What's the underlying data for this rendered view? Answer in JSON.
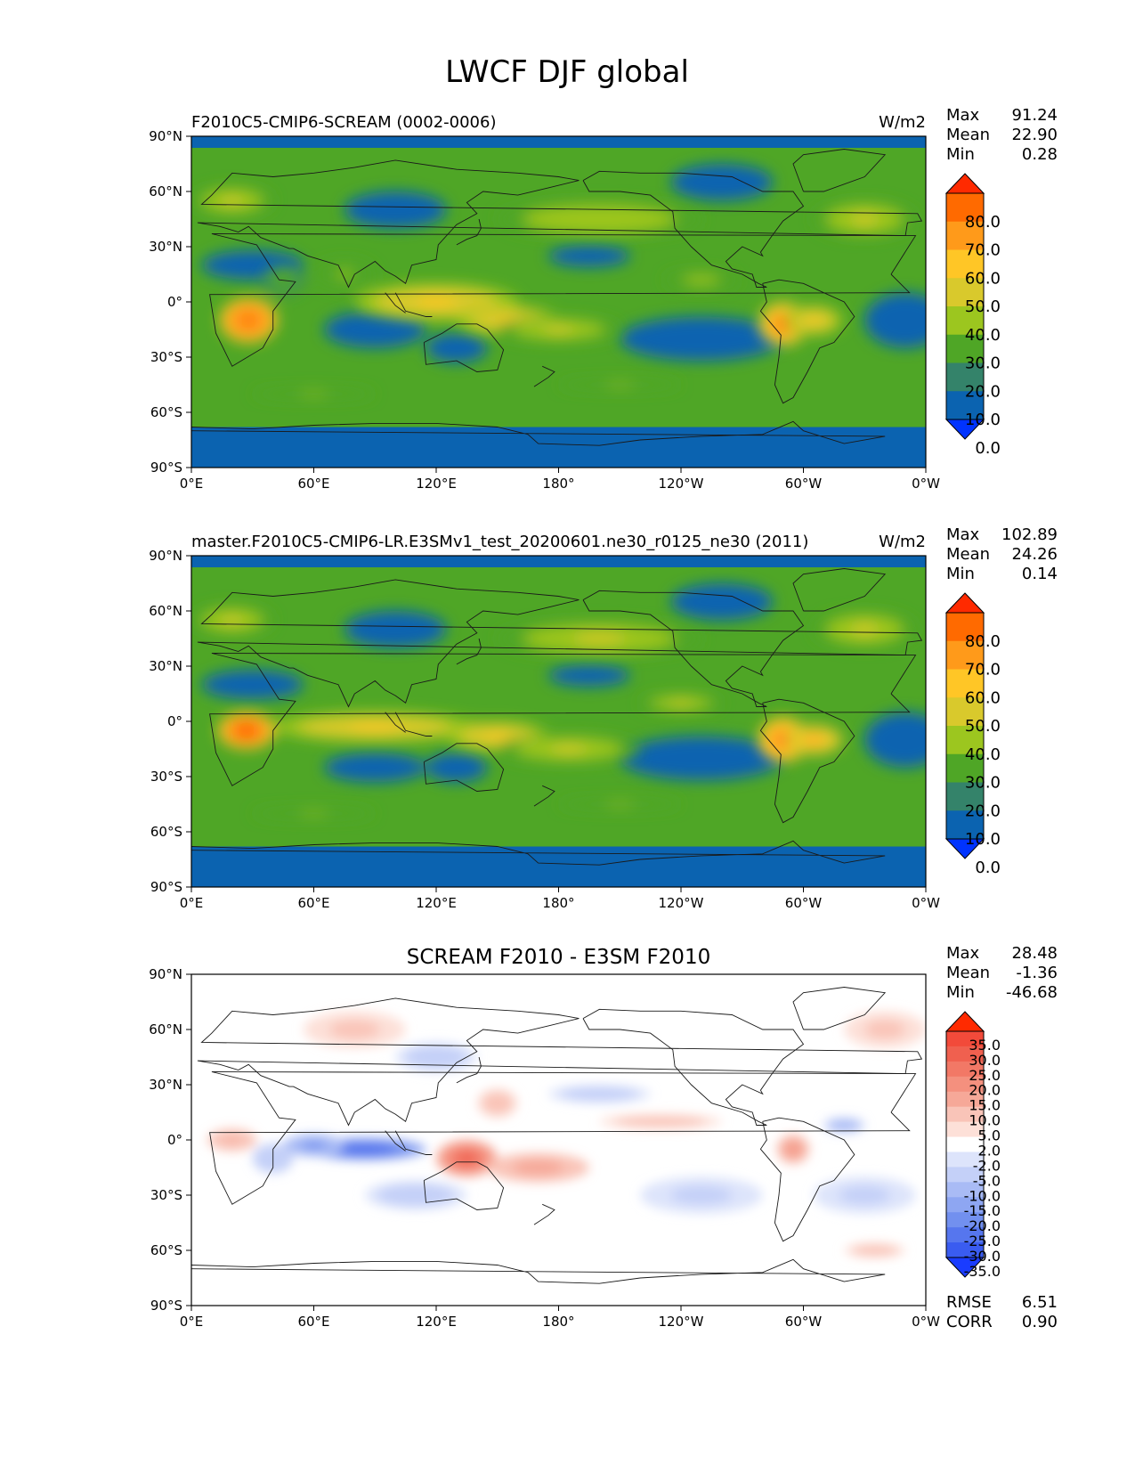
{
  "title": "LWCF DJF global",
  "chart_data": [
    {
      "type": "heatmap",
      "panel": "test",
      "title_left": "F2010C5-CMIP6-SCREAM (0002-0006)",
      "title_center": "",
      "units": "W/m2",
      "stats": [
        {
          "label": "Max",
          "value": "91.24"
        },
        {
          "label": "Mean",
          "value": "22.90"
        },
        {
          "label": "Min",
          "value": "0.28"
        }
      ],
      "extra_stats": [],
      "xticks": [
        "0°E",
        "60°E",
        "120°E",
        "180°",
        "120°W",
        "60°W",
        "0°W"
      ],
      "yticks": [
        "90°N",
        "60°N",
        "30°N",
        "0°",
        "30°S",
        "60°S",
        "90°S"
      ],
      "xlim": [
        0,
        360
      ],
      "ylim": [
        -90,
        90
      ],
      "colorbar": {
        "levels": [
          "80.0",
          "70.0",
          "60.0",
          "50.0",
          "40.0",
          "30.0",
          "20.0",
          "10.0",
          "0.0"
        ],
        "colors": [
          "#ff2a00",
          "#ff6a00",
          "#ff9a1a",
          "#ffc626",
          "#d9c92c",
          "#9cc61f",
          "#4fa626",
          "#34836a",
          "#0b63b0",
          "#0033ff"
        ]
      },
      "blobs": [
        {
          "lon": 28,
          "lat": -10,
          "rx": 14,
          "ry": 12,
          "v": 75
        },
        {
          "lon": 138,
          "lat": -5,
          "rx": 14,
          "ry": 6,
          "v": 78
        },
        {
          "lon": 120,
          "lat": 0,
          "rx": 40,
          "ry": 10,
          "v": 52
        },
        {
          "lon": 155,
          "lat": -10,
          "rx": 25,
          "ry": 8,
          "v": 50
        },
        {
          "lon": 180,
          "lat": -15,
          "rx": 30,
          "ry": 7,
          "v": 40
        },
        {
          "lon": 290,
          "lat": -12,
          "rx": 12,
          "ry": 12,
          "v": 70
        },
        {
          "lon": 305,
          "lat": -10,
          "rx": 14,
          "ry": 8,
          "v": 55
        },
        {
          "lon": 200,
          "lat": 45,
          "rx": 50,
          "ry": 10,
          "v": 38
        },
        {
          "lon": 330,
          "lat": 45,
          "rx": 25,
          "ry": 10,
          "v": 40
        },
        {
          "lon": 20,
          "lat": 55,
          "rx": 20,
          "ry": 8,
          "v": 42
        },
        {
          "lon": 75,
          "lat": 15,
          "rx": 15,
          "ry": 8,
          "v": 30
        },
        {
          "lon": 250,
          "lat": 12,
          "rx": 18,
          "ry": 5,
          "v": 35
        },
        {
          "lon": 210,
          "lat": -45,
          "rx": 30,
          "ry": 3,
          "v": 30
        },
        {
          "lon": 60,
          "lat": -50,
          "rx": 30,
          "ry": 3,
          "v": 30
        },
        {
          "lon": 45,
          "lat": 12,
          "rx": 10,
          "ry": 8,
          "v": 25
        }
      ],
      "lows": [
        {
          "lon": 90,
          "lat": -15,
          "rx": 25,
          "ry": 10
        },
        {
          "lon": 250,
          "lat": -20,
          "rx": 40,
          "ry": 12
        },
        {
          "lon": 350,
          "lat": -10,
          "rx": 20,
          "ry": 15
        },
        {
          "lon": 195,
          "lat": 25,
          "rx": 20,
          "ry": 6
        },
        {
          "lon": 30,
          "lat": 20,
          "rx": 25,
          "ry": 8
        },
        {
          "lon": 100,
          "lat": 50,
          "rx": 25,
          "ry": 10
        },
        {
          "lon": 260,
          "lat": 65,
          "rx": 25,
          "ry": 10
        },
        {
          "lon": 130,
          "lat": -25,
          "rx": 15,
          "ry": 8
        }
      ]
    },
    {
      "type": "heatmap",
      "panel": "reference",
      "title_left": "master.F2010C5-CMIP6-LR.E3SMv1_test_20200601.ne30_r0125_ne30 (2011)",
      "title_center": "",
      "units": "W/m2",
      "stats": [
        {
          "label": "Max",
          "value": "102.89"
        },
        {
          "label": "Mean",
          "value": "24.26"
        },
        {
          "label": "Min",
          "value": "0.14"
        }
      ],
      "extra_stats": [],
      "xticks": [
        "0°E",
        "60°E",
        "120°E",
        "180°",
        "120°W",
        "60°W",
        "0°W"
      ],
      "yticks": [
        "90°N",
        "60°N",
        "30°N",
        "0°",
        "30°S",
        "60°S",
        "90°S"
      ],
      "xlim": [
        0,
        360
      ],
      "ylim": [
        -90,
        90
      ],
      "colorbar": {
        "levels": [
          "80.0",
          "70.0",
          "60.0",
          "50.0",
          "40.0",
          "30.0",
          "20.0",
          "10.0",
          "0.0"
        ],
        "colors": [
          "#ff2a00",
          "#ff6a00",
          "#ff9a1a",
          "#ffc626",
          "#d9c92c",
          "#9cc61f",
          "#4fa626",
          "#34836a",
          "#0b63b0",
          "#0033ff"
        ]
      },
      "blobs": [
        {
          "lon": 27,
          "lat": -5,
          "rx": 14,
          "ry": 10,
          "v": 78
        },
        {
          "lon": 138,
          "lat": -5,
          "rx": 12,
          "ry": 5,
          "v": 82
        },
        {
          "lon": 90,
          "lat": -3,
          "rx": 50,
          "ry": 8,
          "v": 55
        },
        {
          "lon": 150,
          "lat": -8,
          "rx": 25,
          "ry": 8,
          "v": 55
        },
        {
          "lon": 185,
          "lat": -15,
          "rx": 35,
          "ry": 8,
          "v": 42
        },
        {
          "lon": 290,
          "lat": -10,
          "rx": 12,
          "ry": 12,
          "v": 72
        },
        {
          "lon": 305,
          "lat": -10,
          "rx": 14,
          "ry": 8,
          "v": 60
        },
        {
          "lon": 200,
          "lat": 45,
          "rx": 50,
          "ry": 10,
          "v": 42
        },
        {
          "lon": 330,
          "lat": 50,
          "rx": 25,
          "ry": 10,
          "v": 40
        },
        {
          "lon": 20,
          "lat": 55,
          "rx": 20,
          "ry": 8,
          "v": 40
        },
        {
          "lon": 240,
          "lat": 10,
          "rx": 20,
          "ry": 5,
          "v": 42
        },
        {
          "lon": 210,
          "lat": -45,
          "rx": 30,
          "ry": 3,
          "v": 32
        },
        {
          "lon": 60,
          "lat": -50,
          "rx": 30,
          "ry": 3,
          "v": 30
        }
      ],
      "lows": [
        {
          "lon": 90,
          "lat": -25,
          "rx": 25,
          "ry": 8
        },
        {
          "lon": 250,
          "lat": -20,
          "rx": 40,
          "ry": 12
        },
        {
          "lon": 350,
          "lat": -10,
          "rx": 20,
          "ry": 15
        },
        {
          "lon": 195,
          "lat": 25,
          "rx": 20,
          "ry": 6
        },
        {
          "lon": 30,
          "lat": 20,
          "rx": 25,
          "ry": 8
        },
        {
          "lon": 100,
          "lat": 50,
          "rx": 25,
          "ry": 10
        },
        {
          "lon": 260,
          "lat": 65,
          "rx": 25,
          "ry": 10
        },
        {
          "lon": 130,
          "lat": -25,
          "rx": 15,
          "ry": 8
        }
      ]
    },
    {
      "type": "heatmap",
      "panel": "diff",
      "title_left": "",
      "title_center": "SCREAM F2010 - E3SM F2010",
      "units": "",
      "stats": [
        {
          "label": "Max",
          "value": "28.48"
        },
        {
          "label": "Mean",
          "value": "-1.36"
        },
        {
          "label": "Min",
          "value": "-46.68"
        }
      ],
      "extra_stats": [
        {
          "label": "RMSE",
          "value": "6.51"
        },
        {
          "label": "CORR",
          "value": "0.90"
        }
      ],
      "xticks": [
        "0°E",
        "60°E",
        "120°E",
        "180°",
        "120°W",
        "60°W",
        "0°W"
      ],
      "yticks": [
        "90°N",
        "60°N",
        "30°N",
        "0°",
        "30°S",
        "60°S",
        "90°S"
      ],
      "xlim": [
        0,
        360
      ],
      "ylim": [
        -90,
        90
      ],
      "colorbar": {
        "levels": [
          "35.0",
          "30.0",
          "25.0",
          "20.0",
          "15.0",
          "10.0",
          "5.0",
          "2.0",
          "-2.0",
          "-5.0",
          "-10.0",
          "-15.0",
          "-20.0",
          "-25.0",
          "-30.0",
          "-35.0"
        ],
        "colors": [
          "#ff2a00",
          "#f24a3a",
          "#f0604f",
          "#f27866",
          "#f4907e",
          "#f6a898",
          "#f9c4b8",
          "#fde0d8",
          "#ffffff",
          "#dde4fb",
          "#c4d0f8",
          "#a9bbf5",
          "#8ea6f2",
          "#7290ef",
          "#5676ee",
          "#3a5cf0",
          "#1a3cff"
        ]
      },
      "blobs": [
        {
          "lon": 85,
          "lat": -5,
          "rx": 30,
          "ry": 6,
          "v": -30
        },
        {
          "lon": 60,
          "lat": -3,
          "rx": 15,
          "ry": 6,
          "v": -22
        },
        {
          "lon": 135,
          "lat": -10,
          "rx": 15,
          "ry": 10,
          "v": 25
        },
        {
          "lon": 170,
          "lat": -15,
          "rx": 25,
          "ry": 8,
          "v": 12
        },
        {
          "lon": 295,
          "lat": -5,
          "rx": 8,
          "ry": 8,
          "v": 15
        },
        {
          "lon": 320,
          "lat": 8,
          "rx": 10,
          "ry": 4,
          "v": -15
        },
        {
          "lon": 20,
          "lat": 0,
          "rx": 12,
          "ry": 6,
          "v": 10
        },
        {
          "lon": 40,
          "lat": -10,
          "rx": 10,
          "ry": 8,
          "v": -10
        },
        {
          "lon": 200,
          "lat": 25,
          "rx": 25,
          "ry": 5,
          "v": -8
        },
        {
          "lon": 230,
          "lat": 10,
          "rx": 30,
          "ry": 4,
          "v": 8
        },
        {
          "lon": 80,
          "lat": 60,
          "rx": 25,
          "ry": 10,
          "v": 6
        },
        {
          "lon": 340,
          "lat": 60,
          "rx": 20,
          "ry": 10,
          "v": 6
        },
        {
          "lon": 120,
          "lat": 45,
          "rx": 20,
          "ry": 8,
          "v": -8
        },
        {
          "lon": 150,
          "lat": 20,
          "rx": 10,
          "ry": 8,
          "v": 8
        },
        {
          "lon": 110,
          "lat": -30,
          "rx": 25,
          "ry": 8,
          "v": -8
        },
        {
          "lon": 250,
          "lat": -30,
          "rx": 30,
          "ry": 10,
          "v": -6
        },
        {
          "lon": 330,
          "lat": -30,
          "rx": 25,
          "ry": 10,
          "v": -6
        },
        {
          "lon": 335,
          "lat": -60,
          "rx": 15,
          "ry": 4,
          "v": 8
        }
      ],
      "lows": []
    }
  ]
}
